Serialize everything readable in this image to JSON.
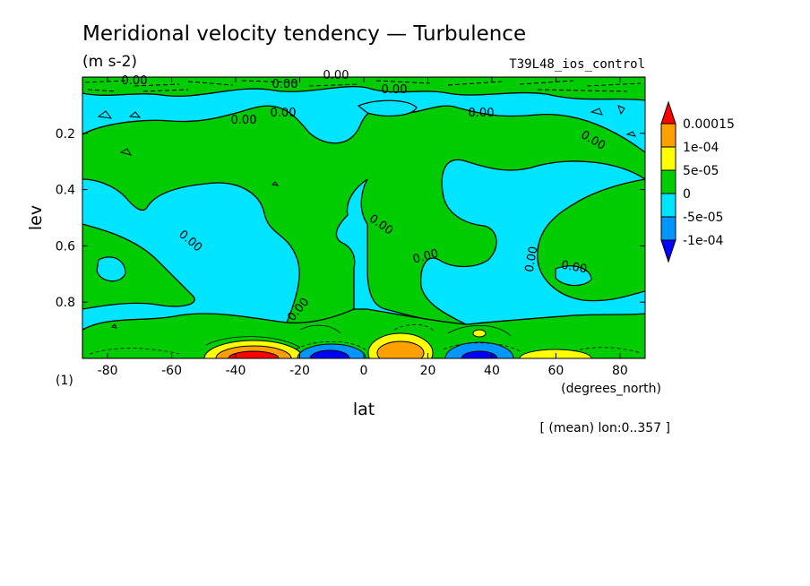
{
  "chart_data": {
    "type": "contour",
    "title": "Meridional velocity tendency — Turbulence",
    "units": "(m s-2)",
    "experiment": "T39L48_ios_control",
    "xlabel": "lat",
    "xunits": "(degrees_north)",
    "ylabel": "lev",
    "yunits": "(1)",
    "xlim": [
      -87.86,
      87.86
    ],
    "ylim": [
      1.0,
      0.0
    ],
    "x_ticks": [
      "-80",
      "-60",
      "-40",
      "-20",
      "0",
      "20",
      "40",
      "60",
      "80"
    ],
    "y_ticks": [
      "0.2",
      "0.4",
      "0.6",
      "0.8"
    ],
    "x_tick_values": [
      -80,
      -60,
      -40,
      -20,
      0,
      20,
      40,
      60,
      80
    ],
    "y_tick_values": [
      0.2,
      0.4,
      0.6,
      0.8
    ],
    "note": "[ (mean) lon:0..357 ]",
    "contour_label": "0.00",
    "colorbar": {
      "labels": [
        "0.00015",
        "1e-04",
        "5e-05",
        "0",
        "-5e-05",
        "-1e-04"
      ],
      "colors": [
        "#ff0000",
        "#ff9f00",
        "#ffff00",
        "#00cc00",
        "#00e5ff",
        "#0096ff",
        "#0000ff"
      ]
    },
    "features": [
      {
        "lat": -37,
        "lev": 0.99,
        "value": 0.00015,
        "sign": "positive"
      },
      {
        "lat": -12,
        "lev": 0.99,
        "value": -0.0001,
        "sign": "negative"
      },
      {
        "lat": 10,
        "lev": 0.97,
        "value": 0.0001,
        "sign": "positive"
      },
      {
        "lat": 33,
        "lev": 0.98,
        "value": -0.0001,
        "sign": "negative"
      },
      {
        "lat": 62,
        "lev": 0.99,
        "value": 5e-05,
        "sign": "positive"
      }
    ]
  }
}
